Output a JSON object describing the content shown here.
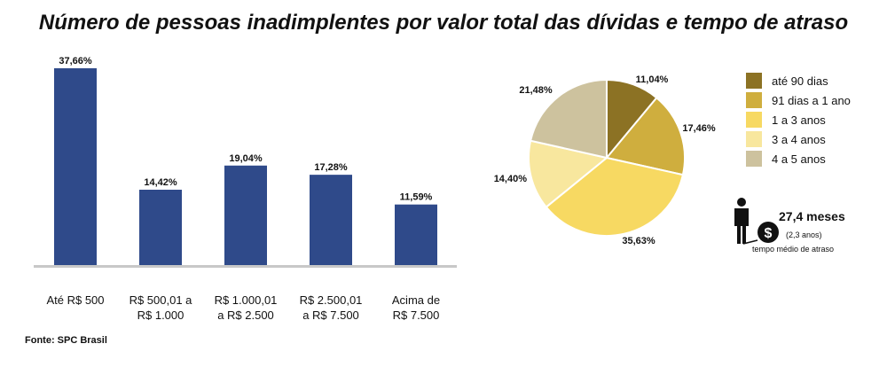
{
  "title": "Número de pessoas inadimplentes por valor total das dívidas e tempo de atraso",
  "source": "Fonte: SPC Brasil",
  "chart_data": [
    {
      "type": "bar",
      "categories": [
        "Até R$ 500",
        "R$ 500,01 a R$ 1.000",
        "R$ 1.000,01 a R$ 2.500",
        "R$ 2.500,01 a R$ 7.500",
        "Acima de R$ 7.500"
      ],
      "category_lines": [
        [
          "Até R$ 500"
        ],
        [
          "R$ 500,01 a",
          "R$ 1.000"
        ],
        [
          "R$ 1.000,01",
          "a R$ 2.500"
        ],
        [
          "R$ 2.500,01",
          "a R$ 7.500"
        ],
        [
          "Acima de",
          "R$ 7.500"
        ]
      ],
      "values": [
        37.66,
        14.42,
        19.04,
        17.28,
        11.59
      ],
      "value_labels": [
        "37,66%",
        "14,42%",
        "19,04%",
        "17,28%",
        "11,59%"
      ],
      "ylim": [
        0,
        40
      ],
      "bar_color": "#2f4a8a",
      "grid": false
    },
    {
      "type": "pie",
      "labels": [
        "até 90 dias",
        "91 dias a 1 ano",
        "1 a 3 anos",
        "3 a 4 anos",
        "4 a 5 anos"
      ],
      "values": [
        11.04,
        17.46,
        35.63,
        14.4,
        21.48
      ],
      "value_labels": [
        "11,04%",
        "17,46%",
        "35,63%",
        "14,40%",
        "21,48%"
      ],
      "colors": [
        "#8c7224",
        "#cfae3e",
        "#f7d962",
        "#f8e79e",
        "#cdc29e"
      ],
      "legend_position": "right"
    }
  ],
  "delay_info": {
    "value": "27,4 meses",
    "sub": "(2,3 anos)",
    "caption": "tempo médio de atraso",
    "icon": "person-with-money-ball-icon"
  }
}
